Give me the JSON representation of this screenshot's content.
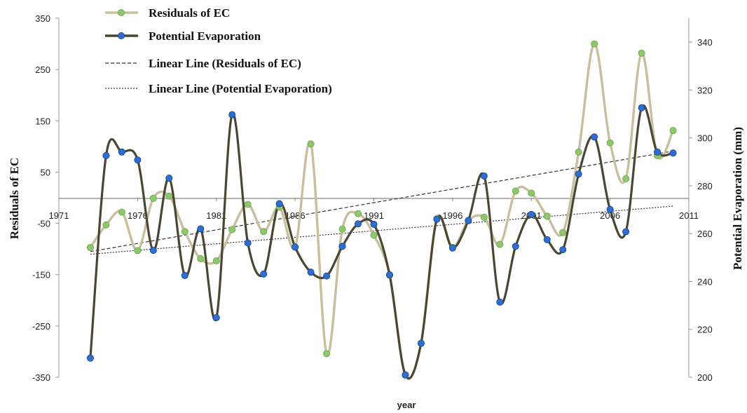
{
  "chart_data": {
    "type": "line",
    "xlabel": "year",
    "ylabel_left": "Residuals of EC",
    "ylabel_right": "Potential Evaporation (mm)",
    "xlim": [
      1971,
      2011
    ],
    "ylim_left": [
      -350,
      350
    ],
    "ylim_right": [
      200,
      350
    ],
    "x_ticks": [
      1971,
      1976,
      1981,
      1986,
      1991,
      1996,
      2001,
      2006,
      2011
    ],
    "y_ticks_left": [
      350,
      250,
      150,
      50,
      -50,
      -150,
      -250,
      -350
    ],
    "y_ticks_right": [
      200,
      220,
      240,
      260,
      280,
      300,
      320,
      340
    ],
    "grid": false,
    "legend_position": "top-left",
    "series": [
      {
        "name": "Residuals of EC",
        "axis": "left",
        "color": "#c8bf9e",
        "marker_color": "#8dc86a",
        "x": [
          1973,
          1974,
          1975,
          1976,
          1977,
          1978,
          1979,
          1980,
          1981,
          1982,
          1983,
          1984,
          1985,
          1986,
          1987,
          1988,
          1989,
          1990,
          1991,
          1992,
          1993,
          1994,
          1995,
          1996,
          1997,
          1998,
          1999,
          2000,
          2001,
          2002,
          2003,
          2004,
          2005,
          2006,
          2007,
          2008,
          2009,
          2010
        ],
        "y": [
          -97,
          -53,
          -28,
          -103,
          -1,
          3,
          -66,
          -119,
          -123,
          -62,
          -13,
          -66,
          -18,
          -96,
          105,
          -304,
          -61,
          -31,
          -73,
          -151,
          -346,
          -284,
          -41,
          -97,
          -45,
          -38,
          -91,
          13,
          9,
          -36,
          -68,
          89,
          300,
          107,
          37,
          282,
          82,
          131
        ]
      },
      {
        "name": "Potential Evaporation",
        "axis": "right",
        "color": "#4a4632",
        "marker_color": "#2c6fd1",
        "x": [
          1973,
          1974,
          1975,
          1976,
          1977,
          1978,
          1979,
          1980,
          1981,
          1982,
          1983,
          1984,
          1985,
          1986,
          1987,
          1988,
          1989,
          1990,
          1991,
          1992,
          1993,
          1994,
          1995,
          1996,
          1997,
          1998,
          1999,
          2000,
          2001,
          2002,
          2003,
          2004,
          2005,
          2006,
          2007,
          2008,
          2009,
          2010
        ],
        "y": [
          208,
          292.6,
          294.1,
          290.8,
          253,
          283.2,
          242.5,
          262,
          224.9,
          309.7,
          256.1,
          243.1,
          272.5,
          254.4,
          243.9,
          242.3,
          254.7,
          264.1,
          263.9,
          242.8,
          201,
          214.2,
          266,
          254,
          265.5,
          284.1,
          231.4,
          254.7,
          268,
          257.5,
          253.3,
          284.9,
          300.4,
          270.1,
          260.8,
          312.6,
          294.1,
          293.7
        ]
      },
      {
        "name": "Linear Line (Residuals of EC)",
        "axis": "left",
        "style": "dashed",
        "color": "#333333",
        "x": [
          1973,
          2010
        ],
        "y": [
          -105,
          91
        ]
      },
      {
        "name": "Linear Line (Potential Evaporation)",
        "axis": "right",
        "style": "dotted",
        "color": "#333333",
        "x": [
          1973,
          2010
        ],
        "y": [
          251.4,
          271.5
        ]
      }
    ]
  }
}
